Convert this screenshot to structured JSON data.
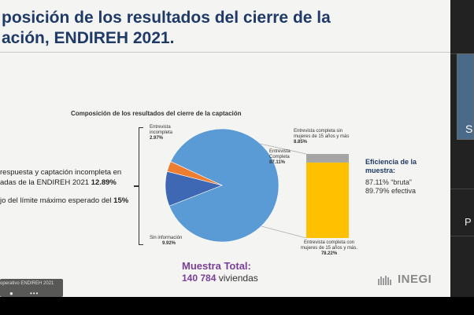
{
  "slide": {
    "title_line1": "posición de los resultados del cierre de la",
    "title_line2": "ación, ENDIREH 2021.",
    "chart_title": "Composición de los resultados del cierre de la captación",
    "left_text_1a": "respuesta y captación incompleta en",
    "left_text_1b": "adas de la ENDIREH 2021",
    "left_text_1b_value": "12.89%",
    "left_text_2": "jo del límite máximo esperado del",
    "left_text_2_value": "15%",
    "labels": {
      "incompleta_title": "Entrevista incompleta",
      "incompleta_value": "2.97%",
      "completa_title": "Entrevista Completa",
      "completa_value": "87.11%",
      "sin_info_title": "Sin información",
      "sin_info_value": "9.92%",
      "sin_mujeres_title": "Entrevista completa sin mujeres de 15 años y más",
      "sin_mujeres_value": "8.85%",
      "con_mujeres_title": "Entrevista completa con mujeres de 15 años y más.",
      "con_mujeres_value": "78.22%"
    },
    "eficiencia": {
      "title": "Eficiencia de la muestra:",
      "bruta": "87.11% “bruta”",
      "efectiva": "89.79% efectiva"
    },
    "muestra": {
      "title": "Muestra Total:",
      "number": "140 784",
      "unit": "viviendas"
    },
    "logo": "INEGI",
    "footer_text": "operativo ENDIREH 2021",
    "footer_dots": "•••"
  },
  "side_panel": {
    "letter_s": "S",
    "letter_p": "P"
  },
  "colors": {
    "title": "#1f3a66",
    "pie_main": "#5b9bd5",
    "pie_sin_info": "#3f68b4",
    "pie_incompleta": "#ed7d31",
    "bar_con_mujeres": "#ffc000",
    "bar_sin_mujeres": "#a5a5a5",
    "muestra": "#7a3f98"
  },
  "chart_data": {
    "type": "pie",
    "title": "Composición de los resultados del cierre de la captación",
    "slices": [
      {
        "label": "Entrevista Completa",
        "value": 87.11
      },
      {
        "label": "Sin información",
        "value": 9.92
      },
      {
        "label": "Entrevista incompleta",
        "value": 2.97
      }
    ],
    "breakdown": {
      "of": "Entrevista Completa",
      "type": "stacked-bar",
      "segments": [
        {
          "label": "Entrevista completa con mujeres de 15 años y más.",
          "value": 78.22
        },
        {
          "label": "Entrevista completa sin mujeres de 15 años y más",
          "value": 8.85
        }
      ]
    }
  }
}
